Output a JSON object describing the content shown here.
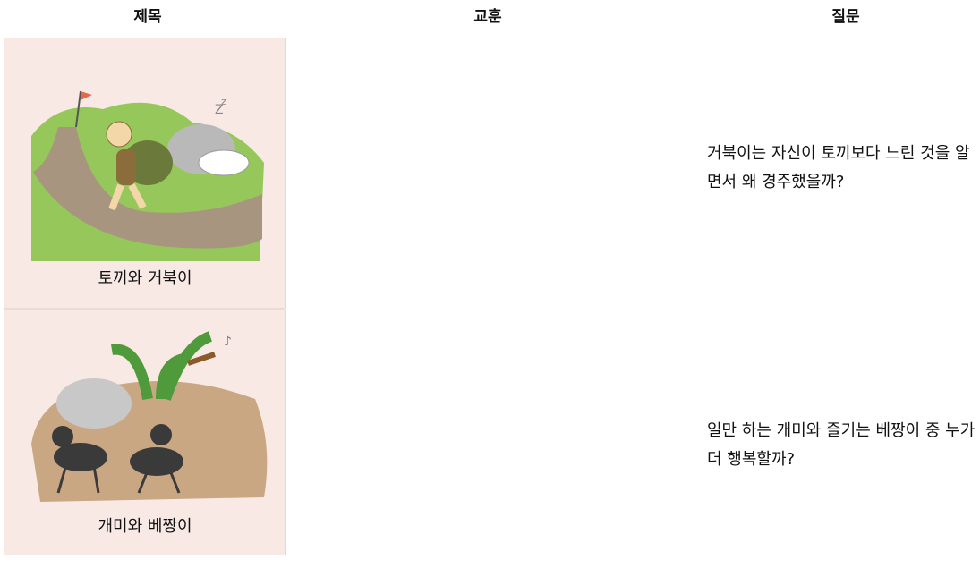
{
  "table": {
    "header": [
      "제목",
      "교훈",
      "질문"
    ],
    "rows": [
      {
        "title": "토끼와 거북이",
        "question": "거북이는 자신이 토끼보다 느린 것을 알면서 왜 경주했을까?"
      },
      {
        "title": "개미와 베짱이",
        "question": "일만 하는 개미와 즐기는 베짱이 중 누가 더 행복할까?"
      }
    ]
  }
}
